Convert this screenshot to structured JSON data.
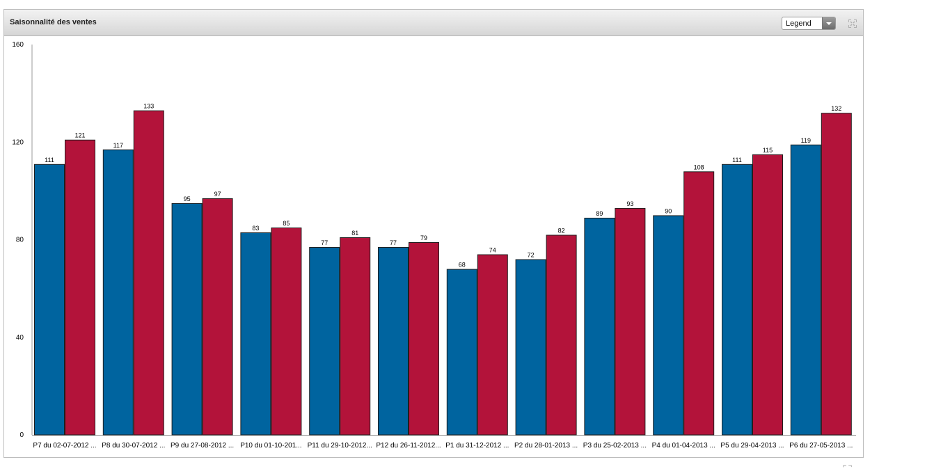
{
  "panel": {
    "title": "Saisonnalité des ventes",
    "legend_dropdown": {
      "selected": "Legend"
    },
    "maximize_icon": "maximize-icon"
  },
  "colors": {
    "series1": "#00649f",
    "series2": "#b3133a"
  },
  "chart_data": {
    "type": "bar",
    "title": "Saisonnalité des ventes",
    "xlabel": "",
    "ylabel": "",
    "ylim": [
      0,
      160
    ],
    "yticks": [
      0,
      40,
      80,
      120,
      160
    ],
    "grid": false,
    "categories": [
      "P7 du 02-07-2012 ...",
      "P8 du 30-07-2012 ...",
      "P9 du 27-08-2012 ...",
      "P10 du 01-10-201...",
      "P11 du 29-10-2012...",
      "P12 du 26-11-2012...",
      "P1 du 31-12-2012 ...",
      "P2 du 28-01-2013 ...",
      "P3 du 25-02-2013 ...",
      "P4 du 01-04-2013 ...",
      "P5 du 29-04-2013 ...",
      "P6 du 27-05-2013 ..."
    ],
    "series": [
      {
        "values": [
          111,
          117,
          95,
          83,
          77,
          77,
          68,
          72,
          89,
          90,
          111,
          119
        ]
      },
      {
        "values": [
          121,
          133,
          97,
          85,
          81,
          79,
          74,
          82,
          93,
          108,
          115,
          132
        ]
      }
    ]
  }
}
